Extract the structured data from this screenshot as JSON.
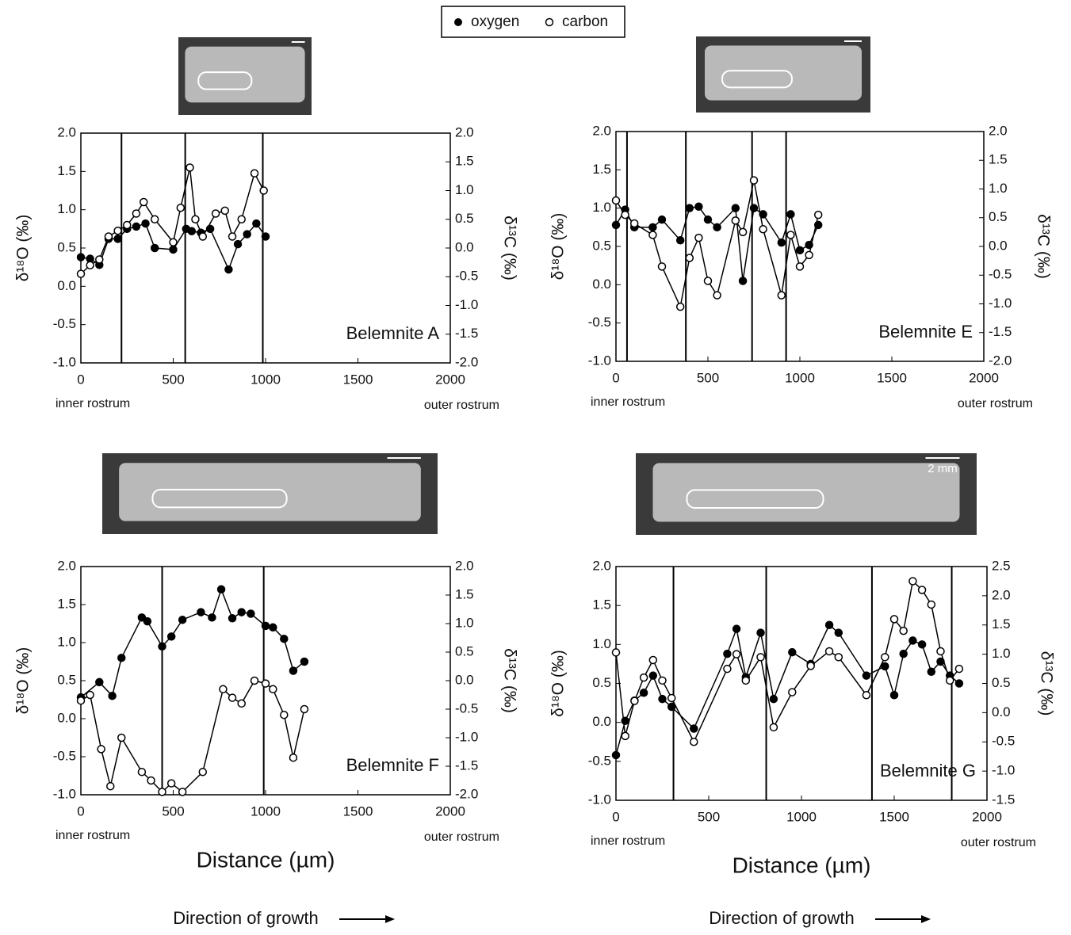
{
  "chart_data": [
    {
      "type": "line",
      "annotation": "Belemnite A",
      "left_label": "inner rostrum",
      "right_label": "outer rostrum",
      "y_label": "δ¹⁸O (‰)",
      "y2_label": "δ¹³C (‰)",
      "xlim": [
        0,
        2000
      ],
      "xticks": [
        0,
        500,
        1000,
        1500,
        2000
      ],
      "ylim": [
        -1,
        2
      ],
      "yticks": [
        {
          "value": -1,
          "label": "-1.0"
        },
        {
          "value": -0.5,
          "label": "-0.5"
        },
        {
          "value": 0,
          "label": "0.0"
        },
        {
          "value": 0.5,
          "label": "0.5"
        },
        {
          "value": 1,
          "label": "1.0"
        },
        {
          "value": 1.5,
          "label": "1.5"
        },
        {
          "value": 2,
          "label": "2.0"
        }
      ],
      "y2lim": [
        -2,
        2
      ],
      "y2ticks": [
        {
          "value": -2,
          "label": "-2.0"
        },
        {
          "value": -1.5,
          "label": "-1.5"
        },
        {
          "value": -1,
          "label": "-1.0"
        },
        {
          "value": -0.5,
          "label": "-0.5"
        },
        {
          "value": 0,
          "label": "0.0"
        },
        {
          "value": 0.5,
          "label": "0.5"
        },
        {
          "value": 1,
          "label": "1.0"
        },
        {
          "value": 1.5,
          "label": "1.5"
        },
        {
          "value": 2,
          "label": "2.0"
        }
      ],
      "vlines": [
        220,
        565,
        985
      ],
      "series": [
        {
          "name": "oxygen",
          "color": "#000000",
          "marker": "filled",
          "x": [
            0,
            50,
            100,
            150,
            200,
            250,
            300,
            350,
            400,
            500,
            570,
            600,
            650,
            700,
            800,
            850,
            900,
            950,
            1000
          ],
          "values": [
            0.38,
            0.36,
            0.28,
            0.62,
            0.62,
            0.75,
            0.78,
            0.82,
            0.5,
            0.48,
            0.75,
            0.72,
            0.7,
            0.75,
            0.22,
            0.55,
            0.68,
            0.82,
            0.65
          ]
        },
        {
          "name": "carbon",
          "color": "#000000",
          "marker": "open",
          "axis": "y2",
          "x": [
            0,
            50,
            100,
            150,
            200,
            250,
            300,
            340,
            400,
            500,
            540,
            590,
            620,
            660,
            730,
            780,
            820,
            870,
            940,
            990
          ],
          "values": [
            -0.45,
            -0.3,
            -0.2,
            0.2,
            0.3,
            0.4,
            0.6,
            0.8,
            0.5,
            0.1,
            0.7,
            1.4,
            0.5,
            0.2,
            0.6,
            0.65,
            0.2,
            0.5,
            1.3,
            1.0
          ]
        }
      ]
    },
    {
      "type": "line",
      "annotation": "Belemnite E",
      "left_label": "inner rostrum",
      "right_label": "outer rostrum",
      "y_label": "δ¹⁸O (‰)",
      "y2_label": "δ¹³C (‰)",
      "xlim": [
        0,
        2000
      ],
      "xticks": [
        0,
        500,
        1000,
        1500,
        2000
      ],
      "ylim": [
        -1,
        2
      ],
      "yticks": [
        {
          "value": -1,
          "label": "-1.0"
        },
        {
          "value": -0.5,
          "label": "-0.5"
        },
        {
          "value": 0,
          "label": "0.0"
        },
        {
          "value": 0.5,
          "label": "0.5"
        },
        {
          "value": 1,
          "label": "1.0"
        },
        {
          "value": 1.5,
          "label": "1.5"
        },
        {
          "value": 2,
          "label": "2.0"
        }
      ],
      "y2lim": [
        -2,
        2
      ],
      "y2ticks": [
        {
          "value": -2,
          "label": "-2.0"
        },
        {
          "value": -1.5,
          "label": "-1.5"
        },
        {
          "value": -1,
          "label": "-1.0"
        },
        {
          "value": -0.5,
          "label": "-0.5"
        },
        {
          "value": 0,
          "label": "0.0"
        },
        {
          "value": 0.5,
          "label": "0.5"
        },
        {
          "value": 1,
          "label": "1.0"
        },
        {
          "value": 1.5,
          "label": "1.5"
        },
        {
          "value": 2,
          "label": "2.0"
        }
      ],
      "vlines": [
        60,
        380,
        740,
        925
      ],
      "series": [
        {
          "color": "#000000",
          "marker": "filled",
          "x": [
            0,
            50,
            100,
            200,
            250,
            350,
            400,
            450,
            500,
            550,
            650,
            690,
            750,
            800,
            900,
            950,
            1000,
            1050,
            1100
          ],
          "values": [
            0.78,
            0.98,
            0.75,
            0.75,
            0.85,
            0.58,
            1.0,
            1.02,
            0.85,
            0.75,
            1.0,
            0.05,
            1.0,
            0.92,
            0.55,
            0.92,
            0.45,
            0.52,
            0.78
          ]
        },
        {
          "color": "#000000",
          "marker": "open",
          "axis": "y2",
          "x": [
            0,
            50,
            100,
            200,
            250,
            350,
            400,
            450,
            500,
            550,
            650,
            690,
            750,
            800,
            900,
            950,
            1000,
            1050,
            1100
          ],
          "values": [
            0.8,
            0.55,
            0.4,
            0.2,
            -0.35,
            -1.05,
            -0.2,
            0.15,
            -0.6,
            -0.85,
            0.45,
            0.25,
            1.15,
            0.3,
            -0.85,
            0.2,
            -0.35,
            -0.15,
            0.55
          ]
        }
      ]
    },
    {
      "type": "line",
      "annotation": "Belemnite F",
      "left_label": "inner rostrum",
      "right_label": "outer rostrum",
      "y_label": "δ¹⁸O (‰)",
      "y2_label": "δ¹³C (‰)",
      "x_label": "Distance (µm)",
      "direction": "Direction of growth",
      "xlim": [
        0,
        2000
      ],
      "xticks": [
        0,
        500,
        1000,
        1500,
        2000
      ],
      "ylim": [
        -1,
        2
      ],
      "yticks": [
        {
          "value": -1,
          "label": "-1.0"
        },
        {
          "value": -0.5,
          "label": "-0.5"
        },
        {
          "value": 0,
          "label": "0.0"
        },
        {
          "value": 0.5,
          "label": "0.5"
        },
        {
          "value": 1,
          "label": "1.0"
        },
        {
          "value": 1.5,
          "label": "1.5"
        },
        {
          "value": 2,
          "label": "2.0"
        }
      ],
      "y2lim": [
        -2,
        2
      ],
      "y2ticks": [
        {
          "value": -2,
          "label": "-2.0"
        },
        {
          "value": -1.5,
          "label": "-1.5"
        },
        {
          "value": -1,
          "label": "-1.0"
        },
        {
          "value": -0.5,
          "label": "-0.5"
        },
        {
          "value": 0,
          "label": "0.0"
        },
        {
          "value": 0.5,
          "label": "0.5"
        },
        {
          "value": 1,
          "label": "1.0"
        },
        {
          "value": 1.5,
          "label": "1.5"
        },
        {
          "value": 2,
          "label": "2.0"
        }
      ],
      "vlines": [
        440,
        990
      ],
      "series": [
        {
          "color": "#000000",
          "marker": "filled",
          "x": [
            0,
            100,
            170,
            220,
            330,
            360,
            440,
            490,
            550,
            650,
            710,
            760,
            820,
            870,
            920,
            1000,
            1040,
            1100,
            1150,
            1210
          ],
          "values": [
            0.28,
            0.48,
            0.3,
            0.8,
            1.33,
            1.28,
            0.95,
            1.08,
            1.3,
            1.4,
            1.33,
            1.7,
            1.32,
            1.4,
            1.38,
            1.22,
            1.2,
            1.05,
            0.63,
            0.75
          ]
        },
        {
          "color": "#000000",
          "marker": "open",
          "axis": "y2",
          "x": [
            0,
            50,
            110,
            160,
            220,
            330,
            380,
            440,
            490,
            550,
            660,
            770,
            820,
            870,
            940,
            1000,
            1040,
            1100,
            1150,
            1210
          ],
          "values": [
            -0.35,
            -0.25,
            -1.2,
            -1.85,
            -1.0,
            -1.6,
            -1.75,
            -1.95,
            -1.8,
            -1.95,
            -1.6,
            -0.15,
            -0.3,
            -0.4,
            0.0,
            -0.05,
            -0.15,
            -0.6,
            -1.35,
            -0.5
          ]
        }
      ]
    },
    {
      "type": "line",
      "annotation": "Belemnite G",
      "left_label": "inner rostrum",
      "right_label": "outer rostrum",
      "scale_label": "2 mm",
      "y_label": "δ¹⁸O (‰)",
      "y2_label": "δ¹³C (‰)",
      "x_label": "Distance (µm)",
      "direction": "Direction of growth",
      "xlim": [
        0,
        2000
      ],
      "xticks": [
        0,
        500,
        1000,
        1500,
        2000
      ],
      "ylim": [
        -1,
        2
      ],
      "yticks": [
        {
          "value": -1,
          "label": "-1.0"
        },
        {
          "value": -0.5,
          "label": "-0.5"
        },
        {
          "value": 0,
          "label": "0.0"
        },
        {
          "value": 0.5,
          "label": "0.5"
        },
        {
          "value": 1,
          "label": "1.0"
        },
        {
          "value": 1.5,
          "label": "1.5"
        },
        {
          "value": 2,
          "label": "2.0"
        }
      ],
      "y2lim": [
        -1.5,
        2.5
      ],
      "y2ticks": [
        {
          "value": -1.5,
          "label": "-1.5"
        },
        {
          "value": -1,
          "label": "-1.0"
        },
        {
          "value": -0.5,
          "label": "-0.5"
        },
        {
          "value": 0,
          "label": "0.0"
        },
        {
          "value": 0.5,
          "label": "0.5"
        },
        {
          "value": 1,
          "label": "1.0"
        },
        {
          "value": 1.5,
          "label": "1.5"
        },
        {
          "value": 2,
          "label": "2.0"
        },
        {
          "value": 2.5,
          "label": "2.5"
        }
      ],
      "vlines": [
        310,
        810,
        1380,
        1810
      ],
      "series": [
        {
          "color": "#000000",
          "marker": "filled",
          "x": [
            0,
            50,
            100,
            150,
            200,
            250,
            300,
            420,
            600,
            650,
            700,
            780,
            850,
            950,
            1050,
            1150,
            1200,
            1350,
            1450,
            1500,
            1550,
            1600,
            1650,
            1700,
            1750,
            1800,
            1850
          ],
          "values": [
            -0.42,
            0.02,
            0.28,
            0.38,
            0.6,
            0.3,
            0.2,
            -0.08,
            0.88,
            1.2,
            0.58,
            1.15,
            0.3,
            0.9,
            0.75,
            1.25,
            1.15,
            0.6,
            0.72,
            0.35,
            0.88,
            1.05,
            1.0,
            0.65,
            0.78,
            0.6,
            0.5
          ]
        },
        {
          "color": "#000000",
          "marker": "open",
          "axis": "y2",
          "x": [
            0,
            50,
            100,
            150,
            200,
            250,
            300,
            420,
            600,
            650,
            700,
            780,
            850,
            950,
            1050,
            1150,
            1200,
            1350,
            1450,
            1500,
            1550,
            1600,
            1650,
            1700,
            1750,
            1800,
            1850
          ],
          "values": [
            1.03,
            -0.4,
            0.2,
            0.6,
            0.9,
            0.55,
            0.25,
            -0.5,
            0.75,
            1.0,
            0.55,
            0.95,
            -0.25,
            0.35,
            0.8,
            1.05,
            0.95,
            0.3,
            0.95,
            1.6,
            1.4,
            2.25,
            2.1,
            1.85,
            1.05,
            0.55,
            0.75
          ]
        }
      ]
    }
  ]
}
